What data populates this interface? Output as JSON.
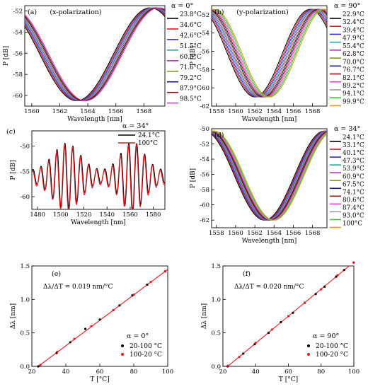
{
  "chart_data": [
    {
      "panel": "(a)",
      "type": "line",
      "annotation": "(x-polarization)",
      "xlabel": "Wavelength [nm]",
      "ylabel": "P [dB]",
      "xlim": [
        1559.5,
        1569.5
      ],
      "ylim": [
        -61,
        -51.5
      ],
      "xticks": [
        1560,
        1562,
        1564,
        1566,
        1568
      ],
      "yticks": [
        -52,
        -54,
        -56,
        -58,
        -60
      ],
      "legend_header": "α = 0°",
      "legend_position": "right",
      "model": {
        "center_start": 1563.2,
        "center_step": 0.08,
        "period": 10.5,
        "max": -51.7,
        "depth": 8.8
      },
      "series": [
        {
          "name": "23.8°C",
          "color": "#000000"
        },
        {
          "name": "34.6°C",
          "color": "#e8161f"
        },
        {
          "name": "42.6°C",
          "color": "#2b2bd8"
        },
        {
          "name": "51.5°C",
          "color": "#23a2a2"
        },
        {
          "name": "60.0°C",
          "color": "#c02bc0"
        },
        {
          "name": "71.6°C",
          "color": "#8a9a1c"
        },
        {
          "name": "79.2°C",
          "color": "#1a1a7a"
        },
        {
          "name": "87.9°C",
          "color": "#8b1010"
        },
        {
          "name": "98.5°C",
          "color": "#e63cc8"
        }
      ]
    },
    {
      "panel": "(b)",
      "type": "line",
      "annotation": "(y-polarization)",
      "xlabel": "Wavelength [nm]",
      "ylabel": "P [dB]",
      "xlim": [
        1557.5,
        1569.5
      ],
      "ylim": [
        -62,
        -51
      ],
      "xticks": [
        1558,
        1560,
        1562,
        1564,
        1566,
        1568
      ],
      "yticks": [
        -52,
        -54,
        -56,
        -58,
        -60,
        -62
      ],
      "legend_header": "α = 90°",
      "legend_position": "right",
      "model": {
        "center_start": 1562.0,
        "center_step": 0.138,
        "period": 11.5,
        "max": -51.4,
        "depth": 9.6
      },
      "series": [
        {
          "name": "22.9°C",
          "color": "#000000"
        },
        {
          "name": "32.4°C",
          "color": "#e8161f"
        },
        {
          "name": "39.4°C",
          "color": "#2b2bd8"
        },
        {
          "name": "47.9°C",
          "color": "#23a2a2"
        },
        {
          "name": "55.4°C",
          "color": "#c02bc0"
        },
        {
          "name": "62.8°C",
          "color": "#8a9a1c"
        },
        {
          "name": "70.0°C",
          "color": "#1a1a7a"
        },
        {
          "name": "76.7°C",
          "color": "#8b1010"
        },
        {
          "name": "82.1°C",
          "color": "#e63cc8"
        },
        {
          "name": "89.2°C",
          "color": "#9a9a9a"
        },
        {
          "name": "94.1°C",
          "color": "#36c936"
        },
        {
          "name": "99.9°C",
          "color": "#d89a1a"
        }
      ]
    },
    {
      "panel": "(c)",
      "type": "line",
      "xlabel": "Wavelength [nm]",
      "ylabel": "P [dB]",
      "xlim": [
        1475,
        1590
      ],
      "ylim": [
        -62.5,
        -47
      ],
      "xticks": [
        1480,
        1500,
        1520,
        1540,
        1560,
        1580
      ],
      "yticks": [
        -50,
        -55,
        -60
      ],
      "legend_header": "α = 34°",
      "legend_position": "top-right",
      "model": {
        "base": -56,
        "fringe_period": 6.9,
        "phase_start": 1476
      },
      "series": [
        {
          "name": "24.1°C",
          "color": "#000000"
        },
        {
          "name": "100°C",
          "color": "#e8161f"
        }
      ]
    },
    {
      "panel": "(d)",
      "type": "line",
      "xlabel": "Wavelength [nm]",
      "ylabel": "P [dB]",
      "xlim": [
        1557.5,
        1569.5
      ],
      "ylim": [
        -63,
        -50
      ],
      "xticks": [
        1558,
        1560,
        1562,
        1564,
        1566,
        1568
      ],
      "yticks": [
        -50,
        -52,
        -54,
        -56,
        -58,
        -60,
        -62
      ],
      "legend_header": "α = 34°",
      "legend_position": "right",
      "model": {
        "center_start": 1563.0,
        "center_step": 0.09,
        "period": 12.5,
        "max": -50.3,
        "depth": 11.7
      },
      "series": [
        {
          "name": "24.1°C",
          "color": "#000000"
        },
        {
          "name": "33.1°C",
          "color": "#e8161f"
        },
        {
          "name": "40.1°C",
          "color": "#2b2bd8"
        },
        {
          "name": "47.3°C",
          "color": "#23a2a2"
        },
        {
          "name": "53.9°C",
          "color": "#c02bc0"
        },
        {
          "name": "60.9°C",
          "color": "#8a9a1c"
        },
        {
          "name": "67.5°C",
          "color": "#1a1a7a"
        },
        {
          "name": "74.1°C",
          "color": "#8b1010"
        },
        {
          "name": "80.6°C",
          "color": "#e63cc8"
        },
        {
          "name": "87.4°C",
          "color": "#9a9a9a"
        },
        {
          "name": "93.0°C",
          "color": "#36c936"
        },
        {
          "name": "100°C",
          "color": "#d89a1a"
        }
      ]
    },
    {
      "panel": "(e)",
      "type": "scatter",
      "annotation": "Δλ/ΔT = 0.019 nm/°C",
      "xlabel": "T [°C]",
      "ylabel": "Δλ [nm]",
      "xlim": [
        20,
        100
      ],
      "ylim": [
        0,
        1.5
      ],
      "xticks": [
        20,
        40,
        60,
        80,
        100
      ],
      "yticks": [
        0.0,
        0.5,
        1.0,
        1.5
      ],
      "legend_header": "α = 0°",
      "legend_position": "bottom-right",
      "fit": {
        "slope": 0.019,
        "x0": 23.8,
        "color": "#e8161f"
      },
      "series": [
        {
          "name": "20-100 °C",
          "color": "#000000",
          "x": [
            23.8,
            34.6,
            42.6,
            51.5,
            60.0,
            71.6,
            79.2,
            87.9,
            98.5
          ],
          "y": [
            0.0,
            0.2,
            0.36,
            0.56,
            0.7,
            0.91,
            1.06,
            1.22,
            1.42
          ]
        },
        {
          "name": "100-20 °C",
          "color": "#e8161f",
          "x": [
            98.5,
            90.0,
            80.0,
            68.0,
            55.0,
            45.0,
            35.0,
            25.0
          ],
          "y": [
            1.42,
            1.26,
            1.07,
            0.84,
            0.6,
            0.41,
            0.22,
            0.02
          ]
        }
      ]
    },
    {
      "panel": "(f)",
      "type": "scatter",
      "annotation": "Δλ/ΔT = 0.020 nm/°C",
      "xlabel": "T [°C]",
      "ylabel": "Δλ [nm]",
      "xlim": [
        20,
        100
      ],
      "ylim": [
        0,
        1.5
      ],
      "xticks": [
        20,
        40,
        60,
        80,
        100
      ],
      "yticks": [
        0.0,
        0.5,
        1.0,
        1.5
      ],
      "legend_header": "α = 90°",
      "legend_position": "bottom-right",
      "fit": {
        "slope": 0.0202,
        "x0": 22.9,
        "color": "#e8161f"
      },
      "series": [
        {
          "name": "20-100 °C",
          "color": "#000000",
          "x": [
            22.9,
            32.4,
            39.4,
            47.9,
            55.4,
            62.8,
            70.0,
            76.7,
            82.1,
            89.2,
            94.1,
            99.9
          ],
          "y": [
            0.0,
            0.19,
            0.33,
            0.5,
            0.66,
            0.8,
            0.95,
            1.08,
            1.19,
            1.34,
            1.44,
            1.55
          ]
        },
        {
          "name": "100-20 °C",
          "color": "#e8161f",
          "x": [
            99.9,
            90.0,
            80.0,
            70.0,
            60.0,
            50.0,
            40.0,
            30.0,
            23.0
          ],
          "y": [
            1.55,
            1.36,
            1.15,
            0.95,
            0.75,
            0.55,
            0.35,
            0.14,
            0.01
          ]
        }
      ]
    }
  ]
}
